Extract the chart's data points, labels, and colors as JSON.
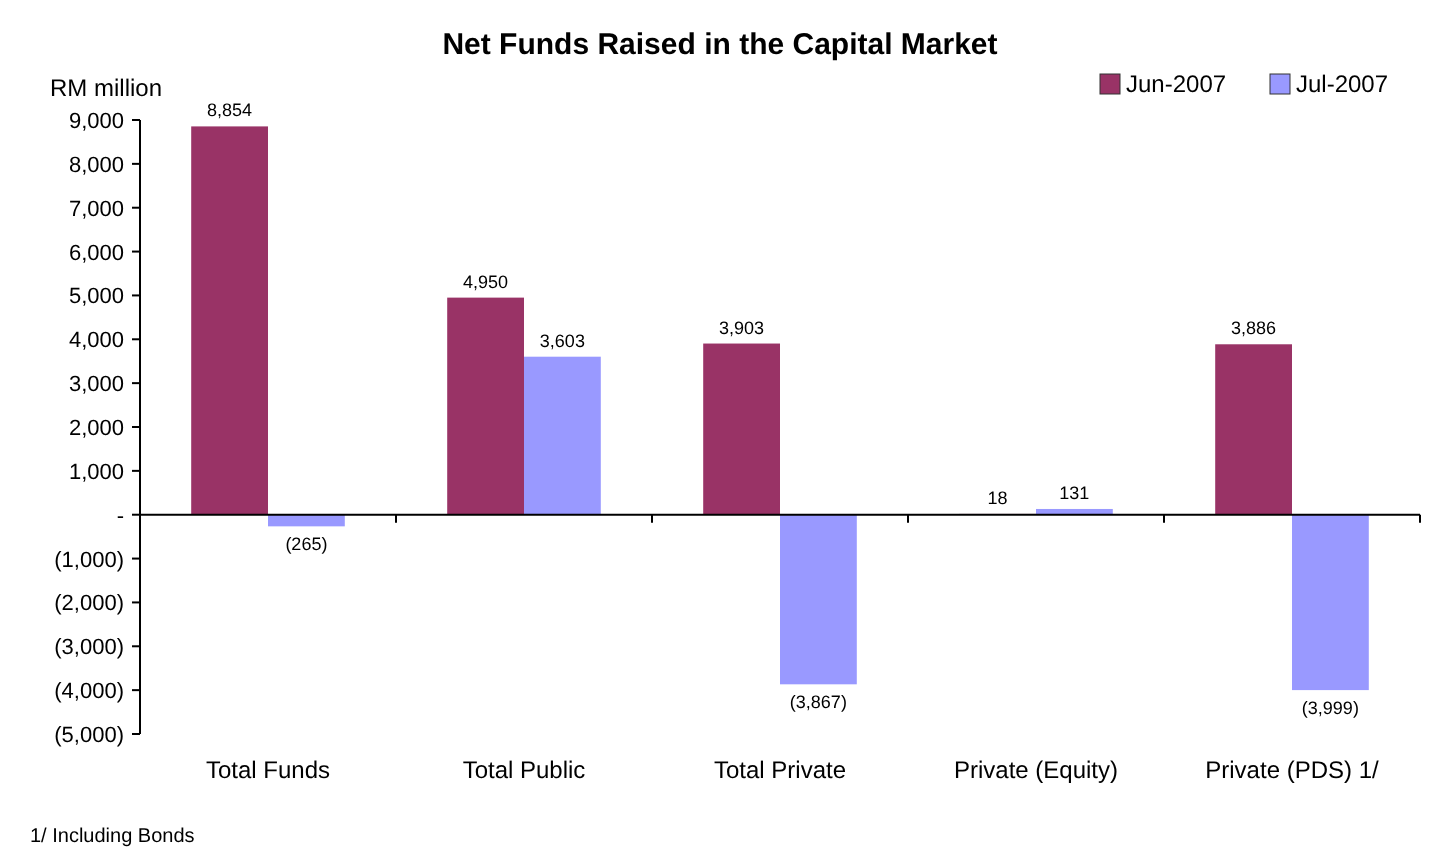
{
  "chart_data": {
    "type": "bar",
    "title": "Net Funds Raised in the Capital Market",
    "ylabel": "RM million",
    "categories": [
      "Total Funds",
      "Total Public",
      "Total Private",
      "Private (Equity)",
      "Private (PDS) 1/"
    ],
    "series": [
      {
        "name": "Jun-2007",
        "color": "#993366",
        "values": [
          8854,
          4950,
          3903,
          18,
          3886
        ],
        "value_labels": [
          "8,854",
          "4,950",
          "3,903",
          "18",
          "3,886"
        ]
      },
      {
        "name": "Jul-2007",
        "color": "#9999ff",
        "values": [
          -265,
          3603,
          -3867,
          131,
          -3999
        ],
        "value_labels": [
          "(265)",
          "3,603",
          "(3,867)",
          "131",
          "(3,999)"
        ]
      }
    ],
    "ylim": [
      -5000,
      9000
    ],
    "yticks": [
      {
        "value": -5000,
        "label": "(5,000)"
      },
      {
        "value": -4000,
        "label": "(4,000)"
      },
      {
        "value": -3000,
        "label": "(3,000)"
      },
      {
        "value": -2000,
        "label": "(2,000)"
      },
      {
        "value": -1000,
        "label": "(1,000)"
      },
      {
        "value": 0,
        "label": "-"
      },
      {
        "value": 1000,
        "label": "1,000"
      },
      {
        "value": 2000,
        "label": "2,000"
      },
      {
        "value": 3000,
        "label": "3,000"
      },
      {
        "value": 4000,
        "label": "4,000"
      },
      {
        "value": 5000,
        "label": "5,000"
      },
      {
        "value": 6000,
        "label": "6,000"
      },
      {
        "value": 7000,
        "label": "7,000"
      },
      {
        "value": 8000,
        "label": "8,000"
      },
      {
        "value": 9000,
        "label": "9,000"
      }
    ],
    "legend": "top right",
    "annotations": [
      "1/ Including Bonds"
    ]
  }
}
